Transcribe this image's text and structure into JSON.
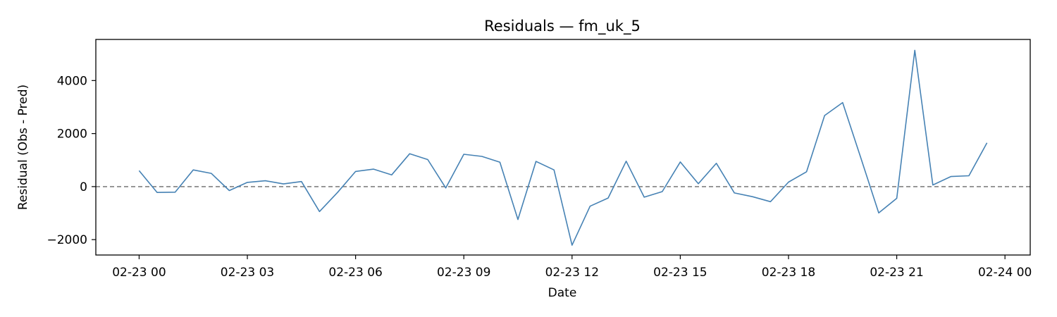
{
  "chart_data": {
    "type": "line",
    "title": "Residuals — fm_uk_5",
    "xlabel": "Date",
    "ylabel": "Residual (Obs - Pred)",
    "x_ticks": [
      "02-23 00",
      "02-23 03",
      "02-23 06",
      "02-23 09",
      "02-23 12",
      "02-23 15",
      "02-23 18",
      "02-23 21",
      "02-24 00"
    ],
    "y_ticks": [
      -2000,
      0,
      2000,
      4000
    ],
    "xlim": [
      "2025-02-22T22:48",
      "2025-02-24T00:42"
    ],
    "ylim": [
      -2580,
      5550
    ],
    "grid": false,
    "reference_line": {
      "y": 0,
      "style": "dashed",
      "color": "#808080"
    },
    "series": [
      {
        "color": "#4682b4",
        "x": [
          "02-23 00:00",
          "02-23 00:30",
          "02-23 01:00",
          "02-23 01:30",
          "02-23 02:00",
          "02-23 02:30",
          "02-23 03:00",
          "02-23 03:30",
          "02-23 04:00",
          "02-23 04:30",
          "02-23 05:00",
          "02-23 05:30",
          "02-23 06:00",
          "02-23 06:30",
          "02-23 07:00",
          "02-23 07:30",
          "02-23 08:00",
          "02-23 08:30",
          "02-23 09:00",
          "02-23 09:30",
          "02-23 10:00",
          "02-23 10:30",
          "02-23 11:00",
          "02-23 11:30",
          "02-23 12:00",
          "02-23 12:30",
          "02-23 13:00",
          "02-23 13:30",
          "02-23 14:00",
          "02-23 14:30",
          "02-23 15:00",
          "02-23 15:30",
          "02-23 16:00",
          "02-23 16:30",
          "02-23 17:00",
          "02-23 17:30",
          "02-23 18:00",
          "02-23 18:30",
          "02-23 19:00",
          "02-23 19:30",
          "02-23 20:00",
          "02-23 20:30",
          "02-23 21:00",
          "02-23 21:30",
          "02-23 22:00",
          "02-23 22:30",
          "02-23 23:00",
          "02-23 23:30"
        ],
        "values": [
          600,
          -220,
          -210,
          630,
          500,
          -150,
          160,
          220,
          100,
          190,
          -940,
          -220,
          570,
          660,
          440,
          1240,
          1020,
          -50,
          1220,
          1140,
          920,
          -1240,
          950,
          630,
          -2210,
          -740,
          -430,
          960,
          -400,
          -190,
          930,
          110,
          880,
          -240,
          -380,
          -570,
          170,
          560,
          2680,
          3170,
          1100,
          -990,
          -440,
          5140,
          60,
          380,
          410,
          1650
        ]
      }
    ]
  }
}
